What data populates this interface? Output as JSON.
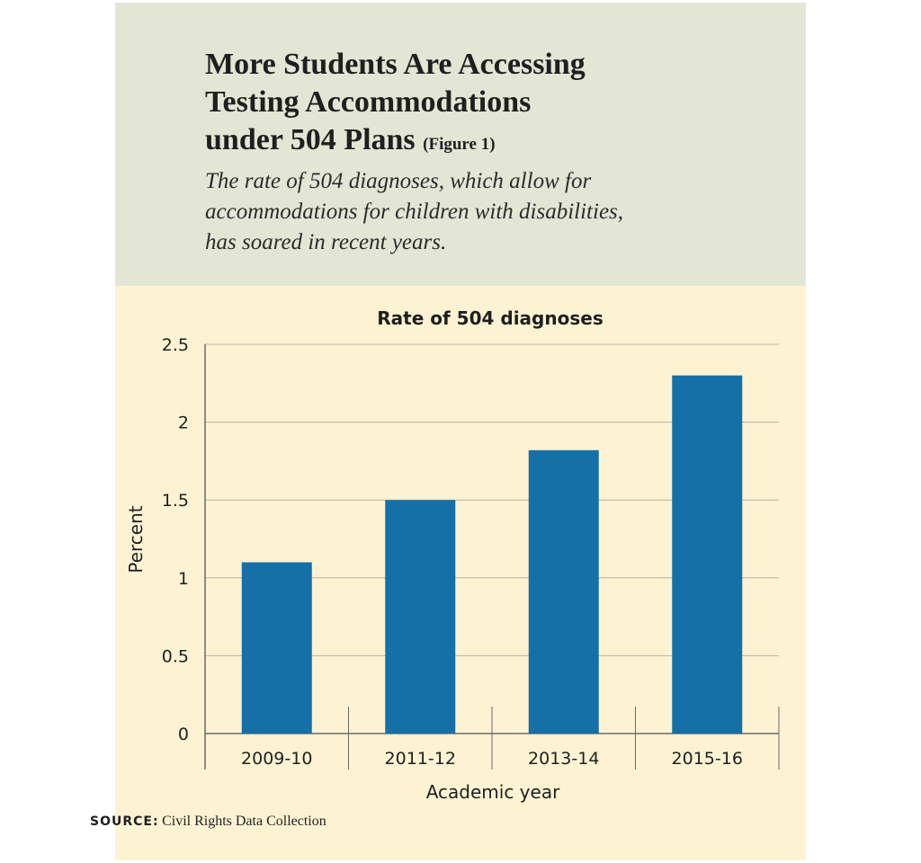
{
  "header": {
    "title_line1": "More Students Are Accessing",
    "title_line2": "Testing Accommodations",
    "title_line3": "under 504 Plans",
    "figure_label": "(Figure 1)",
    "subtitle_line1": "The rate of 504 diagnoses, which allow for",
    "subtitle_line2": "accommodations for children with disabilities,",
    "subtitle_line3": "has soared in recent years."
  },
  "chart_data": {
    "type": "bar",
    "title": "Rate of 504 diagnoses",
    "xlabel": "Academic year",
    "ylabel": "Percent",
    "categories": [
      "2009-10",
      "2011-12",
      "2013-14",
      "2015-16"
    ],
    "values": [
      1.1,
      1.5,
      1.82,
      2.3
    ],
    "ylim": [
      0,
      2.5
    ],
    "yticks": [
      "0",
      "0.5",
      "1",
      "1.5",
      "2",
      "2.5"
    ],
    "grid": true,
    "bar_color": "#1570a8"
  },
  "source": {
    "label": "SOURCE:",
    "text": "Civil Rights Data Collection"
  },
  "colors": {
    "header_bg": "#e4e6d5",
    "chart_bg": "#fdf3d3",
    "bar": "#1570a8"
  }
}
